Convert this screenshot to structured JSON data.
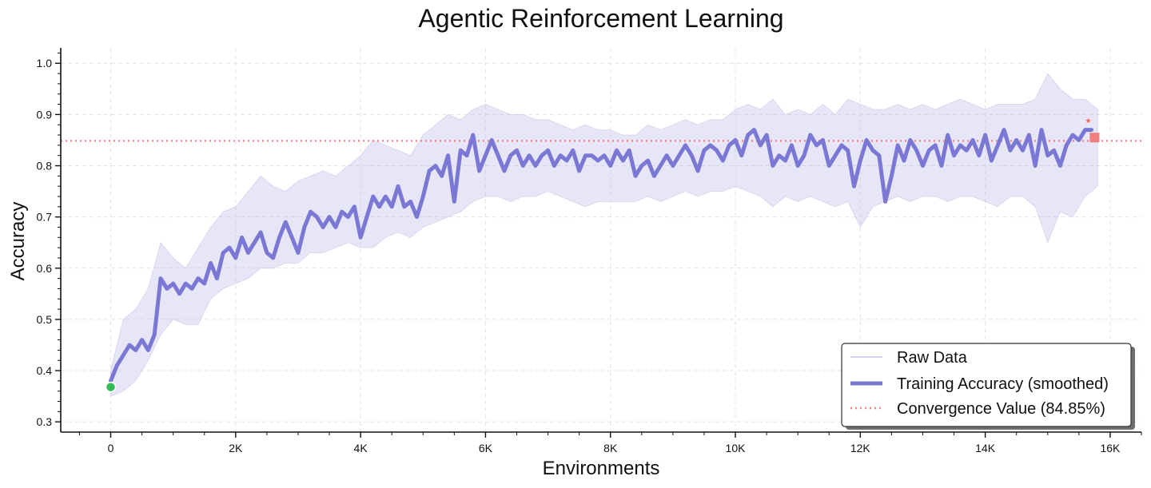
{
  "chart_data": {
    "type": "line",
    "title": "Agentic Reinforcement Learning",
    "xlabel": "Environments",
    "ylabel": "Accuracy",
    "xlim": [
      -800,
      16500
    ],
    "ylim": [
      0.28,
      1.03
    ],
    "x_ticks": [
      0,
      2000,
      4000,
      6000,
      8000,
      10000,
      12000,
      14000,
      16000
    ],
    "x_tick_labels": [
      "0",
      "2K",
      "4K",
      "6K",
      "8K",
      "10K",
      "12K",
      "14K",
      "16K"
    ],
    "y_ticks": [
      0.3,
      0.4,
      0.5,
      0.6,
      0.7,
      0.8,
      0.9,
      1.0
    ],
    "y_tick_labels": [
      "0.3",
      "0.4",
      "0.5",
      "0.6",
      "0.7",
      "0.8",
      "0.9",
      "1.0"
    ],
    "grid": true,
    "legend_position": "bottom-right",
    "series": [
      {
        "name": "Raw Data",
        "kind": "band",
        "color": "#b8b6e6",
        "x": [
          0,
          200,
          400,
          600,
          800,
          1000,
          1200,
          1400,
          1600,
          1800,
          2000,
          2200,
          2400,
          2600,
          2800,
          3000,
          3200,
          3400,
          3600,
          3800,
          4000,
          4200,
          4400,
          4600,
          4800,
          5000,
          5200,
          5400,
          5600,
          5800,
          6000,
          6200,
          6400,
          6600,
          6800,
          7000,
          7200,
          7400,
          7600,
          7800,
          8000,
          8200,
          8400,
          8600,
          8800,
          9000,
          9200,
          9400,
          9600,
          9800,
          10000,
          10200,
          10400,
          10600,
          10800,
          11000,
          11200,
          11400,
          11600,
          11800,
          12000,
          12200,
          12400,
          12600,
          12800,
          13000,
          13200,
          13400,
          13600,
          13800,
          14000,
          14200,
          14400,
          14600,
          14800,
          15000,
          15200,
          15400,
          15600,
          15800
        ],
        "upper": [
          0.4,
          0.5,
          0.52,
          0.56,
          0.65,
          0.62,
          0.6,
          0.64,
          0.68,
          0.71,
          0.72,
          0.75,
          0.78,
          0.76,
          0.75,
          0.77,
          0.78,
          0.79,
          0.78,
          0.8,
          0.82,
          0.85,
          0.84,
          0.83,
          0.82,
          0.86,
          0.88,
          0.9,
          0.89,
          0.91,
          0.92,
          0.91,
          0.9,
          0.9,
          0.89,
          0.89,
          0.88,
          0.87,
          0.88,
          0.87,
          0.87,
          0.86,
          0.86,
          0.88,
          0.87,
          0.88,
          0.89,
          0.88,
          0.89,
          0.89,
          0.91,
          0.92,
          0.91,
          0.93,
          0.9,
          0.91,
          0.9,
          0.92,
          0.9,
          0.93,
          0.92,
          0.91,
          0.91,
          0.92,
          0.91,
          0.92,
          0.91,
          0.92,
          0.93,
          0.92,
          0.91,
          0.92,
          0.92,
          0.92,
          0.93,
          0.98,
          0.95,
          0.93,
          0.93,
          0.91
        ],
        "lower": [
          0.35,
          0.36,
          0.38,
          0.42,
          0.47,
          0.5,
          0.49,
          0.49,
          0.54,
          0.56,
          0.57,
          0.58,
          0.6,
          0.6,
          0.61,
          0.61,
          0.63,
          0.63,
          0.64,
          0.65,
          0.64,
          0.64,
          0.66,
          0.67,
          0.66,
          0.68,
          0.69,
          0.7,
          0.71,
          0.73,
          0.74,
          0.74,
          0.73,
          0.74,
          0.74,
          0.75,
          0.74,
          0.73,
          0.72,
          0.73,
          0.73,
          0.73,
          0.73,
          0.74,
          0.73,
          0.74,
          0.75,
          0.74,
          0.75,
          0.75,
          0.76,
          0.75,
          0.74,
          0.72,
          0.74,
          0.73,
          0.74,
          0.73,
          0.72,
          0.73,
          0.68,
          0.72,
          0.73,
          0.74,
          0.73,
          0.74,
          0.74,
          0.73,
          0.74,
          0.74,
          0.73,
          0.72,
          0.74,
          0.74,
          0.72,
          0.65,
          0.71,
          0.7,
          0.74,
          0.76
        ]
      },
      {
        "name": "Training Accuracy (smoothed)",
        "kind": "line",
        "color": "#7b77d4",
        "x": [
          0,
          100,
          200,
          300,
          400,
          500,
          600,
          700,
          800,
          900,
          1000,
          1100,
          1200,
          1300,
          1400,
          1500,
          1600,
          1700,
          1800,
          1900,
          2000,
          2100,
          2200,
          2300,
          2400,
          2500,
          2600,
          2700,
          2800,
          2900,
          3000,
          3100,
          3200,
          3300,
          3400,
          3500,
          3600,
          3700,
          3800,
          3900,
          4000,
          4100,
          4200,
          4300,
          4400,
          4500,
          4600,
          4700,
          4800,
          4900,
          5000,
          5100,
          5200,
          5300,
          5400,
          5500,
          5600,
          5700,
          5800,
          5900,
          6000,
          6100,
          6200,
          6300,
          6400,
          6500,
          6600,
          6700,
          6800,
          6900,
          7000,
          7100,
          7200,
          7300,
          7400,
          7500,
          7600,
          7700,
          7800,
          7900,
          8000,
          8100,
          8200,
          8300,
          8400,
          8500,
          8600,
          8700,
          8800,
          8900,
          9000,
          9100,
          9200,
          9300,
          9400,
          9500,
          9600,
          9700,
          9800,
          9900,
          10000,
          10100,
          10200,
          10300,
          10400,
          10500,
          10600,
          10700,
          10800,
          10900,
          11000,
          11100,
          11200,
          11300,
          11400,
          11500,
          11600,
          11700,
          11800,
          11900,
          12000,
          12100,
          12200,
          12300,
          12400,
          12500,
          12600,
          12700,
          12800,
          12900,
          13000,
          13100,
          13200,
          13300,
          13400,
          13500,
          13600,
          13700,
          13800,
          13900,
          14000,
          14100,
          14200,
          14300,
          14400,
          14500,
          14600,
          14700,
          14800,
          14900,
          15000,
          15100,
          15200,
          15300,
          15400,
          15500,
          15600,
          15700
        ],
        "values": [
          0.38,
          0.41,
          0.43,
          0.45,
          0.44,
          0.46,
          0.44,
          0.47,
          0.58,
          0.56,
          0.57,
          0.55,
          0.57,
          0.56,
          0.58,
          0.57,
          0.61,
          0.58,
          0.63,
          0.64,
          0.62,
          0.66,
          0.63,
          0.65,
          0.67,
          0.63,
          0.62,
          0.66,
          0.69,
          0.66,
          0.63,
          0.68,
          0.71,
          0.7,
          0.68,
          0.7,
          0.68,
          0.71,
          0.7,
          0.72,
          0.66,
          0.7,
          0.74,
          0.72,
          0.74,
          0.72,
          0.76,
          0.72,
          0.73,
          0.7,
          0.74,
          0.79,
          0.8,
          0.78,
          0.82,
          0.73,
          0.83,
          0.82,
          0.86,
          0.79,
          0.82,
          0.85,
          0.82,
          0.79,
          0.82,
          0.83,
          0.8,
          0.82,
          0.8,
          0.82,
          0.83,
          0.8,
          0.82,
          0.81,
          0.83,
          0.79,
          0.82,
          0.82,
          0.81,
          0.82,
          0.8,
          0.83,
          0.81,
          0.83,
          0.78,
          0.8,
          0.81,
          0.78,
          0.8,
          0.82,
          0.8,
          0.82,
          0.84,
          0.82,
          0.79,
          0.83,
          0.84,
          0.83,
          0.81,
          0.84,
          0.85,
          0.82,
          0.86,
          0.87,
          0.84,
          0.86,
          0.8,
          0.82,
          0.81,
          0.84,
          0.8,
          0.82,
          0.86,
          0.84,
          0.85,
          0.8,
          0.82,
          0.84,
          0.83,
          0.76,
          0.81,
          0.85,
          0.83,
          0.82,
          0.73,
          0.78,
          0.84,
          0.81,
          0.85,
          0.83,
          0.8,
          0.83,
          0.84,
          0.8,
          0.86,
          0.82,
          0.84,
          0.83,
          0.85,
          0.82,
          0.86,
          0.81,
          0.84,
          0.87,
          0.83,
          0.85,
          0.83,
          0.86,
          0.8,
          0.87,
          0.82,
          0.83,
          0.8,
          0.84,
          0.86,
          0.85,
          0.87,
          0.87
        ]
      },
      {
        "name": "Convergence Value (84.85%)",
        "kind": "hline",
        "color": "#f08a8a",
        "value": 0.8485
      }
    ],
    "markers": [
      {
        "x": 0,
        "y": 0.368,
        "shape": "circle",
        "color": "#33bb55"
      },
      {
        "x": 15750,
        "y": 0.855,
        "shape": "square",
        "color": "#f07f7f"
      },
      {
        "x": 15650,
        "y": 0.888,
        "shape": "star",
        "color": "#e86666"
      }
    ]
  }
}
